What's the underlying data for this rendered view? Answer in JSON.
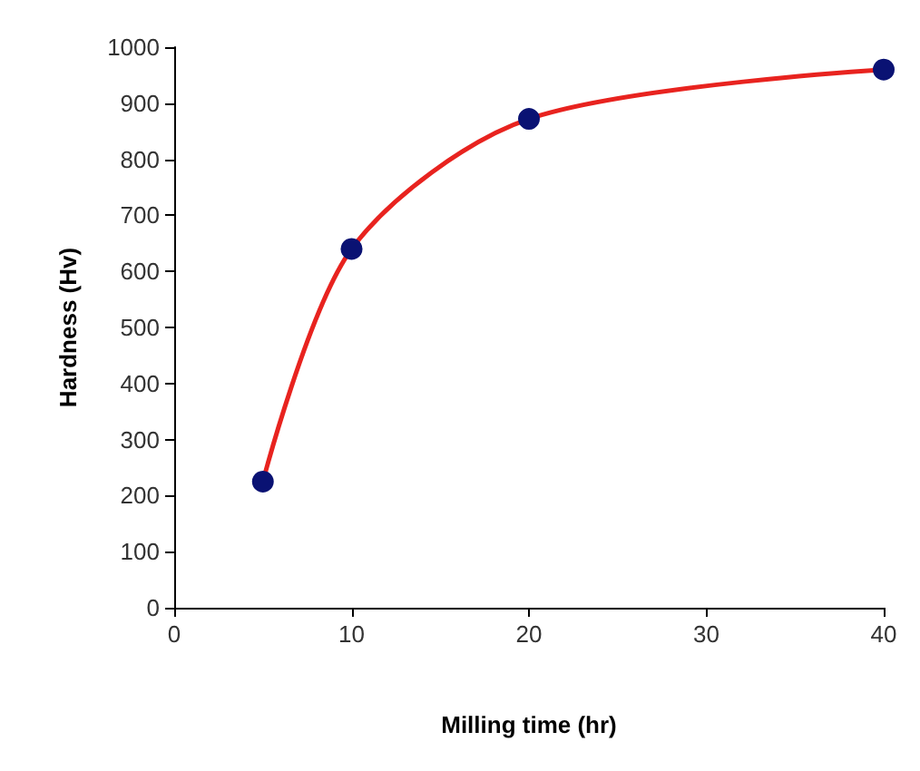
{
  "chart_data": {
    "type": "line",
    "xlabel": "Milling time (hr)",
    "ylabel": "Hardness (Hv)",
    "x": [
      5,
      10,
      20,
      40
    ],
    "series": [
      {
        "color": "#e8231f",
        "values": [
          225,
          640,
          872,
          960
        ],
        "marker": "none"
      },
      {
        "type": "scatter",
        "color": "#0a1273",
        "values": [
          225,
          640,
          872,
          960
        ],
        "marker": "circle"
      }
    ],
    "xlim": [
      0,
      40
    ],
    "xticks": [
      0,
      10,
      20,
      30,
      40
    ],
    "ylim": [
      0,
      1000
    ],
    "yticks": [
      0,
      100,
      200,
      300,
      400,
      500,
      600,
      700,
      800,
      900,
      1000
    ],
    "grid": false
  }
}
